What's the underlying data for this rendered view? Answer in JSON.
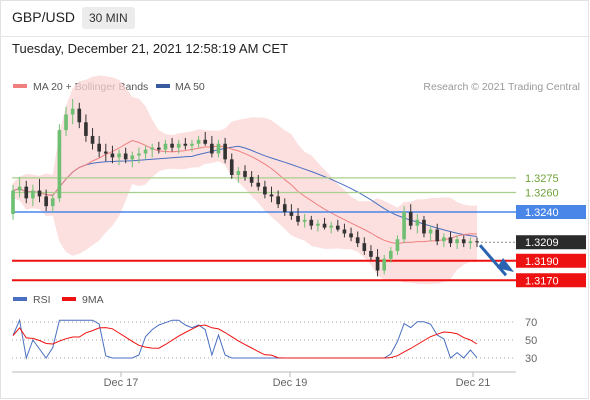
{
  "header": {
    "pair": "GBP/USD",
    "timeframe": "30 MIN",
    "datetime": "Tuesday, December 21, 2021 12:58:19 AM CET"
  },
  "legend": {
    "ma20": "MA 20 + Bollinger Bands",
    "ma50": "MA 50",
    "copyright": "Research © 2021 Trading Central",
    "rsi": "RSI",
    "rsi_ma": "9MA"
  },
  "colors": {
    "up_candle": "#6fbf73",
    "down_candle": "#333333",
    "bollinger_fill": "#fbd6d6",
    "ma20": "#f08080",
    "ma50": "#4a6fc1",
    "resistance": "#a8d08d",
    "pivot": "#4a86e8",
    "support": "#ee1111",
    "arrow": "#2a64b0",
    "current_label": "#2b2b2b"
  },
  "chart_data": [
    {
      "type": "candlestick",
      "x_ticks": [
        "Dec 17",
        "Dec 19",
        "Dec 21"
      ],
      "levels": {
        "resistance_2": "1.3275",
        "resistance_1": "1.3260",
        "pivot": "1.3240",
        "current": "1.3209",
        "support_1": "1.3190",
        "support_2": "1.3170"
      },
      "forecast_direction": "down",
      "ohlc_approx": [
        [
          1.3238,
          1.3268,
          1.3232,
          1.3262
        ],
        [
          1.3262,
          1.3276,
          1.3255,
          1.3266
        ],
        [
          1.3266,
          1.3272,
          1.3249,
          1.3254
        ],
        [
          1.3254,
          1.3268,
          1.3246,
          1.3262
        ],
        [
          1.3262,
          1.3274,
          1.325,
          1.3256
        ],
        [
          1.3256,
          1.3263,
          1.3241,
          1.3246
        ],
        [
          1.3246,
          1.3258,
          1.324,
          1.3254
        ],
        [
          1.3254,
          1.333,
          1.325,
          1.3324
        ],
        [
          1.3324,
          1.3348,
          1.3318,
          1.334
        ],
        [
          1.334,
          1.3356,
          1.333,
          1.3346
        ],
        [
          1.3346,
          1.3352,
          1.3326,
          1.3332
        ],
        [
          1.3332,
          1.334,
          1.3312,
          1.3318
        ],
        [
          1.3318,
          1.3326,
          1.3304,
          1.331
        ],
        [
          1.331,
          1.3318,
          1.3296,
          1.3302
        ],
        [
          1.3302,
          1.331,
          1.3292,
          1.33
        ],
        [
          1.33,
          1.3308,
          1.329,
          1.3296
        ],
        [
          1.3296,
          1.3304,
          1.3288,
          1.33
        ],
        [
          1.33,
          1.3306,
          1.329,
          1.3294
        ],
        [
          1.3294,
          1.3302,
          1.3286,
          1.3298
        ],
        [
          1.3298,
          1.3306,
          1.329,
          1.33
        ],
        [
          1.33,
          1.3308,
          1.3294,
          1.3304
        ],
        [
          1.3304,
          1.331,
          1.3296,
          1.3306
        ],
        [
          1.3306,
          1.3312,
          1.33,
          1.3304
        ],
        [
          1.3304,
          1.3314,
          1.33,
          1.331
        ],
        [
          1.331,
          1.3316,
          1.3302,
          1.3306
        ],
        [
          1.3306,
          1.3314,
          1.33,
          1.331
        ],
        [
          1.331,
          1.3316,
          1.3304,
          1.3308
        ],
        [
          1.3308,
          1.3314,
          1.3302,
          1.331
        ],
        [
          1.331,
          1.3318,
          1.3306,
          1.3314
        ],
        [
          1.3314,
          1.3322,
          1.3308,
          1.331
        ],
        [
          1.331,
          1.3318,
          1.3296,
          1.33
        ],
        [
          1.33,
          1.3314,
          1.3296,
          1.331
        ],
        [
          1.331,
          1.3316,
          1.329,
          1.3294
        ],
        [
          1.3294,
          1.33,
          1.3274,
          1.3278
        ],
        [
          1.3278,
          1.3286,
          1.327,
          1.3282
        ],
        [
          1.3282,
          1.3288,
          1.3272,
          1.3276
        ],
        [
          1.3276,
          1.3282,
          1.3266,
          1.327
        ],
        [
          1.327,
          1.3278,
          1.3262,
          1.3266
        ],
        [
          1.3266,
          1.3272,
          1.3254,
          1.3258
        ],
        [
          1.3258,
          1.3266,
          1.325,
          1.3256
        ],
        [
          1.3256,
          1.3262,
          1.3244,
          1.3248
        ],
        [
          1.3248,
          1.3254,
          1.3236,
          1.324
        ],
        [
          1.324,
          1.3248,
          1.3232,
          1.3236
        ],
        [
          1.3236,
          1.3244,
          1.3226,
          1.323
        ],
        [
          1.323,
          1.3238,
          1.3224,
          1.3232
        ],
        [
          1.3232,
          1.3236,
          1.3222,
          1.3226
        ],
        [
          1.3226,
          1.3232,
          1.322,
          1.3228
        ],
        [
          1.3228,
          1.3234,
          1.3222,
          1.3224
        ],
        [
          1.3224,
          1.323,
          1.3218,
          1.3226
        ],
        [
          1.3226,
          1.3232,
          1.322,
          1.3222
        ],
        [
          1.3222,
          1.3228,
          1.3214,
          1.3218
        ],
        [
          1.3218,
          1.3224,
          1.321,
          1.3214
        ],
        [
          1.3214,
          1.322,
          1.3204,
          1.3208
        ],
        [
          1.3208,
          1.3214,
          1.3196,
          1.32
        ],
        [
          1.32,
          1.3206,
          1.319,
          1.3194
        ],
        [
          1.3194,
          1.3202,
          1.3174,
          1.318
        ],
        [
          1.318,
          1.3196,
          1.3176,
          1.3192
        ],
        [
          1.3192,
          1.3204,
          1.3188,
          1.32
        ],
        [
          1.32,
          1.3216,
          1.3196,
          1.3212
        ],
        [
          1.3212,
          1.3246,
          1.3208,
          1.324
        ],
        [
          1.324,
          1.3248,
          1.3222,
          1.3226
        ],
        [
          1.3226,
          1.3238,
          1.3218,
          1.3232
        ],
        [
          1.3232,
          1.3236,
          1.3214,
          1.3218
        ],
        [
          1.3218,
          1.3226,
          1.321,
          1.3222
        ],
        [
          1.3222,
          1.3228,
          1.3206,
          1.321
        ],
        [
          1.321,
          1.3218,
          1.3204,
          1.3214
        ],
        [
          1.3214,
          1.322,
          1.3204,
          1.3208
        ],
        [
          1.3208,
          1.3216,
          1.3202,
          1.3212
        ],
        [
          1.3212,
          1.3216,
          1.3204,
          1.3208
        ],
        [
          1.3208,
          1.3214,
          1.3202,
          1.321
        ],
        [
          1.321,
          1.3214,
          1.3204,
          1.3209
        ]
      ]
    },
    {
      "type": "line",
      "name": "RSI",
      "y_ticks": [
        "70",
        "50",
        "30"
      ],
      "ylim": [
        20,
        80
      ]
    }
  ]
}
